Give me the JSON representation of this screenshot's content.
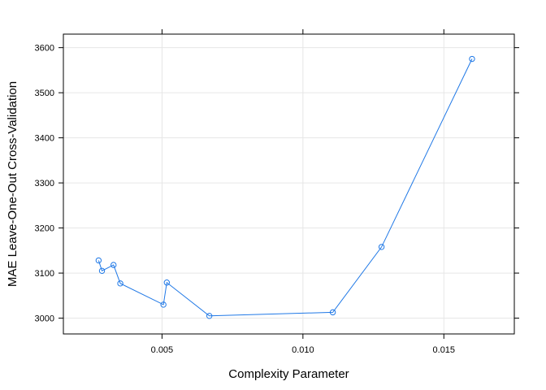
{
  "chart_data": {
    "type": "line",
    "xlabel": "Complexity Parameter",
    "ylabel": "MAE Leave-One-Out Cross-Validation",
    "xlim": [
      0.0015,
      0.0175
    ],
    "ylim": [
      2965,
      3630
    ],
    "x_ticks": [
      0.005,
      0.01,
      0.015
    ],
    "x_tick_labels": [
      "0.005",
      "0.010",
      "0.015"
    ],
    "y_ticks": [
      3000,
      3100,
      3200,
      3300,
      3400,
      3500,
      3600
    ],
    "y_tick_labels": [
      "3000",
      "3100",
      "3200",
      "3300",
      "3400",
      "3500",
      "3600"
    ],
    "grid": true,
    "series": [
      {
        "color": "#1f78e6",
        "marker": "open-circle",
        "x": [
          0.00275,
          0.00287,
          0.00328,
          0.00352,
          0.00505,
          0.00517,
          0.00668,
          0.01106,
          0.01279,
          0.016
        ],
        "y": [
          3128,
          3105,
          3118,
          3077,
          3030,
          3079,
          3005,
          3013,
          3158,
          3575
        ]
      }
    ]
  }
}
